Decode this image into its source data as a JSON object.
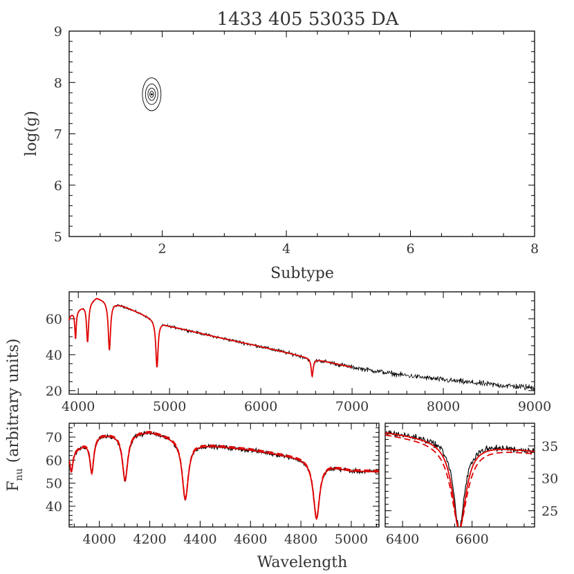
{
  "title": "1433 405 53035 DA",
  "top_panel": {
    "xlabel": "Subtype",
    "ylabel": "log(g)",
    "xlim": [
      0.5,
      8
    ],
    "ylim": [
      5,
      9
    ],
    "xticks": [
      "2",
      "4",
      "6",
      "8"
    ],
    "yticks": [
      "5",
      "6",
      "7",
      "8",
      "9"
    ]
  },
  "ylabel_shared": "F",
  "ylabel_shared_sub": "nu",
  "ylabel_shared_rest": "(arbitrary units)",
  "xlabel_bottom": "Wavelength",
  "colors": {
    "observed": "#000000",
    "model": "#e00000",
    "axes": "#000000"
  },
  "chart_data": [
    {
      "type": "contour",
      "title": "1433 405 53035 DA",
      "xlabel": "Subtype",
      "ylabel": "log(g)",
      "xlim": [
        0.5,
        8
      ],
      "ylim": [
        5,
        9
      ],
      "best_fit": {
        "x": 1.83,
        "y": 7.77
      },
      "contours": [
        {
          "level": 1,
          "rx": 0.03,
          "ry": 0.06
        },
        {
          "level": 2,
          "rx": 0.06,
          "ry": 0.12
        },
        {
          "level": 3,
          "rx": 0.1,
          "ry": 0.2
        },
        {
          "level": 4,
          "rx": 0.15,
          "ry": 0.32
        }
      ]
    },
    {
      "type": "line",
      "xlabel": "",
      "ylabel": "F_nu (arbitrary units)",
      "xlim": [
        3900,
        9000
      ],
      "ylim": [
        18,
        75
      ],
      "xticks": [
        "4000",
        "5000",
        "6000",
        "7000",
        "8000",
        "9000"
      ],
      "yticks": [
        "20",
        "40",
        "60"
      ],
      "series": [
        {
          "x": [
            3900,
            4200,
            4500,
            5000,
            5500,
            6000,
            6500,
            7000,
            7500,
            8000,
            8500,
            9000
          ],
          "y": [
            62,
            72,
            67,
            56,
            50,
            44.5,
            38.5,
            33,
            29,
            26,
            23.5,
            21.5
          ]
        },
        {
          "x": [
            3900,
            4200,
            4500,
            5000,
            5500,
            6000,
            6500,
            7000
          ],
          "y": [
            62,
            72,
            67,
            56,
            50,
            44.5,
            38.5,
            33
          ]
        }
      ],
      "lines": [
        {
          "center": 3889,
          "depth": 10,
          "width": 7
        },
        {
          "center": 3970,
          "depth": 17,
          "width": 9
        },
        {
          "center": 4102,
          "depth": 24,
          "width": 13
        },
        {
          "center": 4341,
          "depth": 30,
          "width": 15
        },
        {
          "center": 4862,
          "depth": 29,
          "width": 15
        },
        {
          "center": 6563,
          "depth": 11,
          "width": 13
        }
      ]
    },
    {
      "type": "line",
      "xlabel": "Wavelength",
      "ylabel": "F_nu (arbitrary units)",
      "xlim": [
        3880,
        5110
      ],
      "ylim": [
        31,
        76
      ],
      "xticks": [
        "4000",
        "4200",
        "4400",
        "4600",
        "4800",
        "5000"
      ],
      "yticks": [
        "40",
        "50",
        "60",
        "70"
      ],
      "series": [
        {
          "x": [
            3880,
            4000,
            4200,
            4400,
            4600,
            4800,
            5000,
            5110
          ],
          "y": [
            63,
            71,
            72.5,
            67,
            64.5,
            61,
            55.5,
            55
          ]
        },
        {
          "x": [
            3880,
            4000,
            4200,
            4400,
            4600,
            4800,
            5000,
            5110
          ],
          "y": [
            63,
            71,
            72.5,
            67,
            64.5,
            61,
            55.5,
            55
          ]
        }
      ]
    },
    {
      "type": "line",
      "xlabel": "Wavelength",
      "ylabel": "",
      "xlim": [
        6350,
        6780
      ],
      "ylim": [
        22.5,
        38.5
      ],
      "xticks": [
        "6400",
        "6600"
      ],
      "yticks": [
        "25",
        "30",
        "35"
      ],
      "series": [
        {
          "x": [
            6350,
            6450,
            6563,
            6650,
            6780
          ],
          "y": [
            37.2,
            36,
            23,
            33.8,
            34.2
          ]
        },
        {
          "x": [
            6350,
            6450,
            6563,
            6650,
            6780
          ],
          "y": [
            37.2,
            36,
            23,
            33.8,
            34.2
          ]
        }
      ]
    }
  ]
}
